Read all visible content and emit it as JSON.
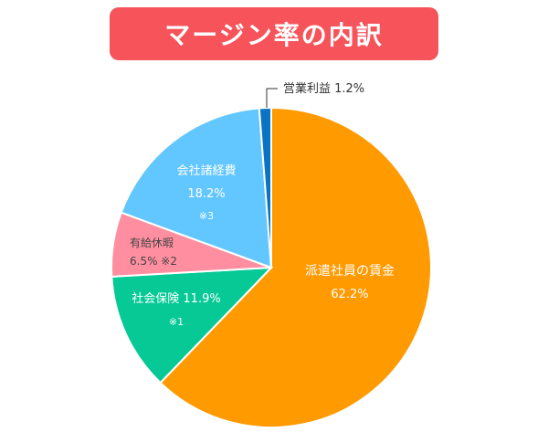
{
  "title": "マージン率の内訳",
  "chart_data": {
    "type": "pie",
    "title": "マージン率の内訳",
    "slices": [
      {
        "name": "派遣社員の賃金",
        "value": 62.2,
        "value_label": "62.2%",
        "note": "",
        "color": "#ff9a00",
        "text_color": "#ffffff"
      },
      {
        "name": "社会保険",
        "value": 11.9,
        "value_label": "11.9%",
        "note": "※1",
        "color": "#06c996",
        "text_color": "#ffffff"
      },
      {
        "name": "有給休暇",
        "value": 6.5,
        "value_label": "6.5%",
        "note": "※2",
        "color": "#ff8fa0",
        "text_color": "#444444"
      },
      {
        "name": "会社諸経費",
        "value": 18.2,
        "value_label": "18.2%",
        "note": "※3",
        "color": "#62c6ff",
        "text_color": "#ffffff"
      },
      {
        "name": "営業利益",
        "value": 1.2,
        "value_label": "1.2%",
        "note": "",
        "color": "#0a73c4",
        "text_color": "#333333"
      }
    ],
    "labels": {
      "wage_name": "派遣社員の賃金",
      "wage_value": "62.2%",
      "insurance_line": "社会保険 11.9%",
      "insurance_note": "※1",
      "leave_name": "有給休暇",
      "leave_line": "6.5% ※2",
      "expense_name": "会社諸経費",
      "expense_value": "18.2%",
      "expense_note": "※3",
      "profit_line": "営業利益 1.2%"
    }
  }
}
